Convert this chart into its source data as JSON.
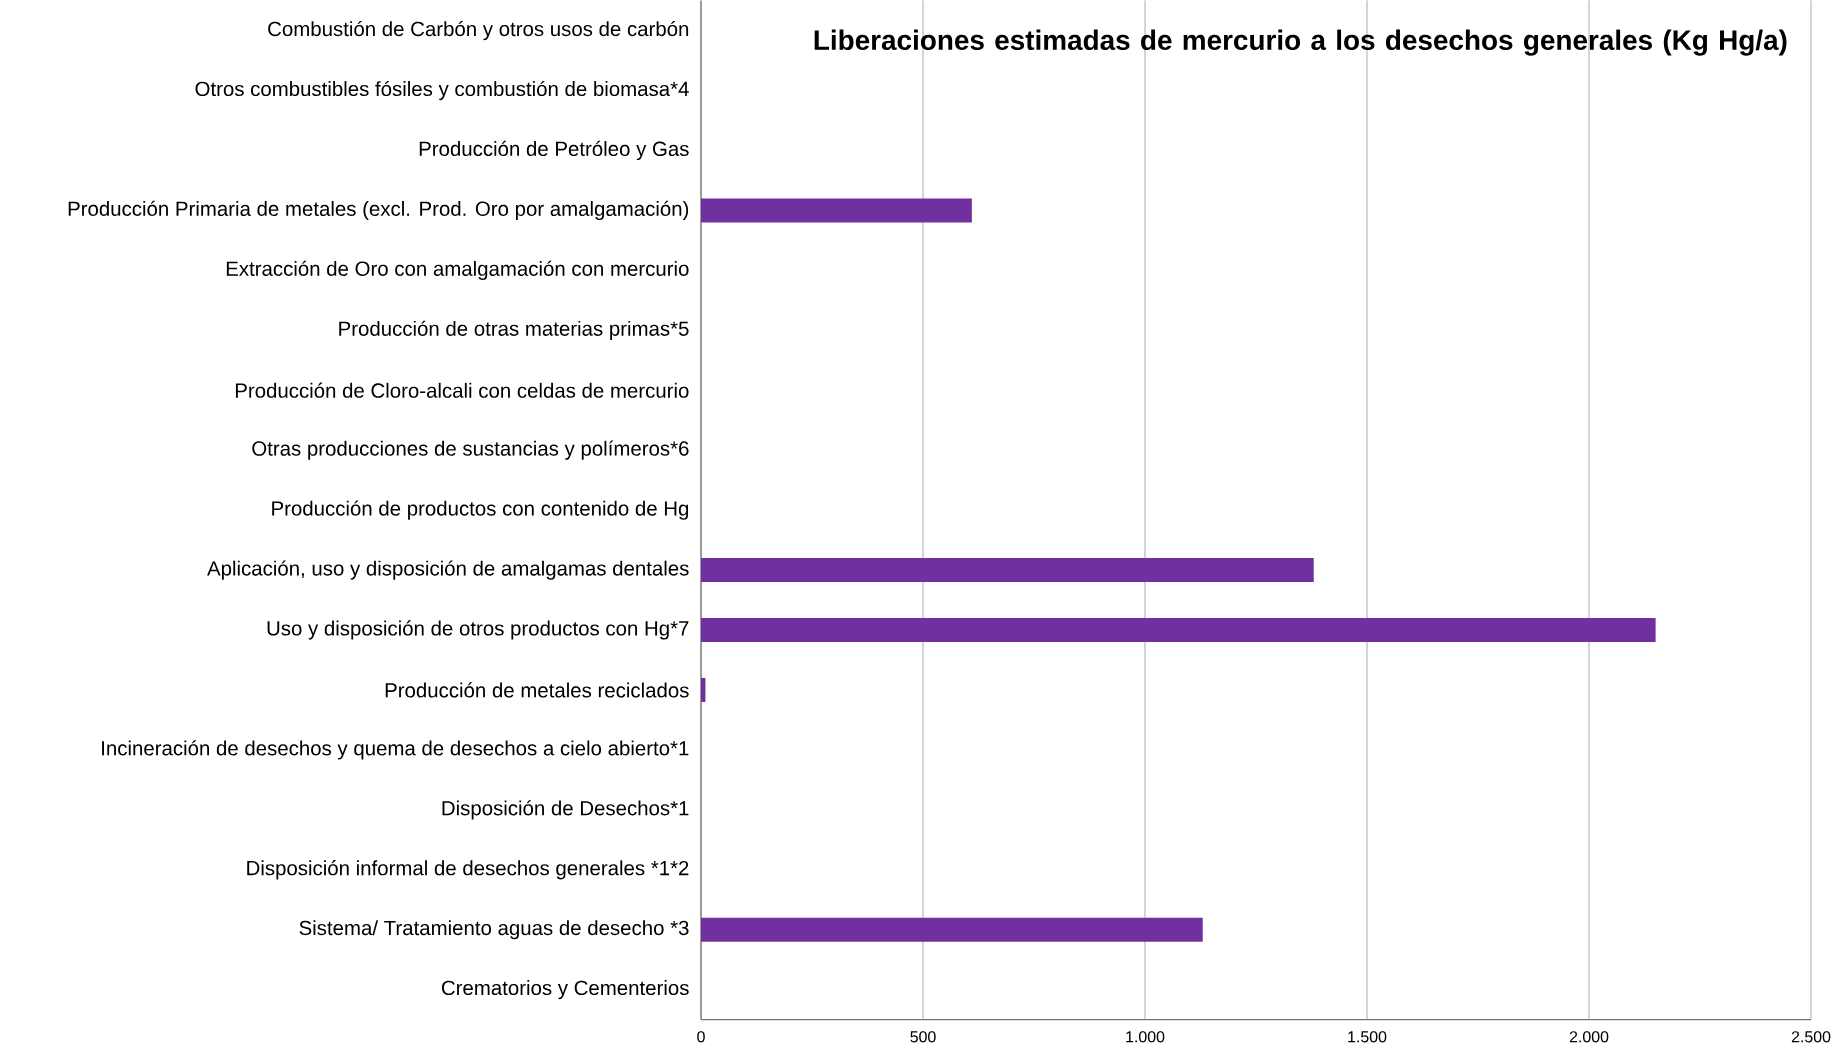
{
  "chart_data": {
    "type": "bar",
    "orientation": "horizontal",
    "title": "Liberaciones estimadas de mercurio a los desechos generales (Kg Hg/a)",
    "categories": [
      "Combustión de Carbón y otros usos de carbón",
      "Otros combustibles fósiles y combustión de biomasa*4",
      "Producción de Petróleo y Gas",
      "Producción Primaria de metales (excl. Prod. Oro por amalgamación)",
      "Extracción de Oro con amalgamación con mercurio",
      "Producción de otras materias primas*5",
      "Producción de Cloro-alcali con celdas de mercurio",
      "Otras producciones de sustancias y polímeros*6",
      "Producción de productos con contenido de Hg",
      "Aplicación, uso y disposición de amalgamas dentales",
      "Uso y disposición de otros productos con Hg*7",
      "Producción de metales reciclados",
      "Incineración de desechos y quema de desechos a cielo abierto*1",
      "Disposición de Desechos*1",
      "Disposición informal de desechos generales *1*2",
      "Sistema/ Tratamiento aguas de desecho *3",
      "Crematorios y Cementerios"
    ],
    "values": [
      0,
      0,
      0,
      610,
      0,
      0,
      0,
      0,
      0,
      1380,
      2150,
      10,
      0,
      0,
      0,
      1130,
      0
    ],
    "color": "#7030a0",
    "xlim": [
      0,
      2500
    ],
    "xticks": [
      0,
      500,
      {
        "value": 1000,
        "label": "1.000"
      },
      {
        "value": 1500,
        "label": "1.500"
      },
      {
        "value": 2000,
        "label": "2.000"
      },
      {
        "value": 2500,
        "label": "2.500"
      }
    ],
    "grid": "x"
  }
}
